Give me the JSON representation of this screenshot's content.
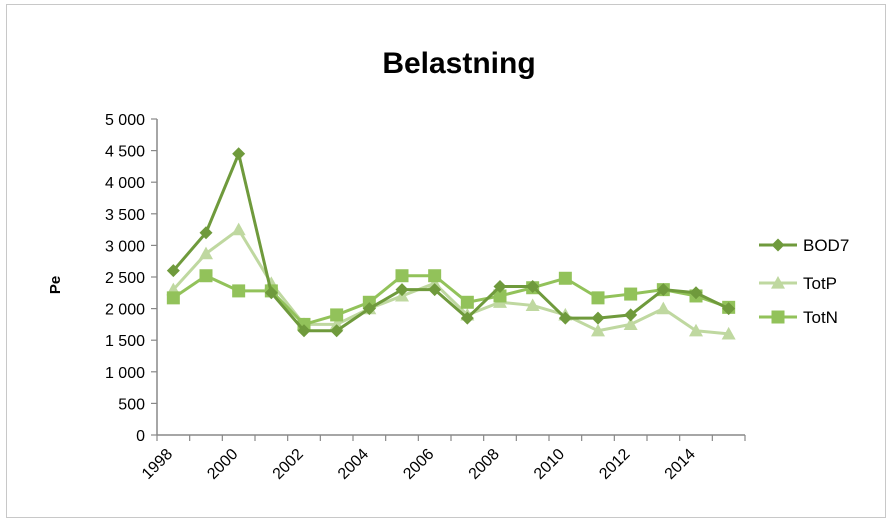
{
  "chart_data": {
    "type": "line",
    "title": "Belastning",
    "xlabel": "",
    "ylabel": "Pe",
    "ylim": [
      0,
      5000
    ],
    "yticks": [
      0,
      500,
      1000,
      1500,
      2000,
      2500,
      3000,
      3500,
      4000,
      4500,
      5000
    ],
    "ytick_labels": [
      "0",
      "500",
      "1 000",
      "1 500",
      "2 000",
      "2 500",
      "3 000",
      "3 500",
      "4 000",
      "4 500",
      "5 000"
    ],
    "categories": [
      "1998",
      "1999",
      "2000",
      "2001",
      "2002",
      "2003",
      "2004",
      "2005",
      "2006",
      "2007",
      "2008",
      "2009",
      "2010",
      "2011",
      "2012",
      "2013",
      "2014",
      "2015"
    ],
    "xtick_labels": [
      "1998",
      "",
      "2000",
      "",
      "2002",
      "",
      "2004",
      "",
      "2006",
      "",
      "2008",
      "",
      "2010",
      "",
      "2012",
      "",
      "2014",
      ""
    ],
    "legend_position": "right",
    "grid": false,
    "series": [
      {
        "name": "BOD7",
        "marker": "diamond",
        "color": "#6f9a3c",
        "values": [
          2600,
          3200,
          4450,
          2250,
          1650,
          1650,
          2000,
          2300,
          2300,
          1850,
          2350,
          2350,
          1850,
          1850,
          1900,
          2300,
          2250,
          2000
        ]
      },
      {
        "name": "TotP",
        "marker": "triangle",
        "color": "#bfd8a0",
        "values": [
          2300,
          2870,
          3250,
          2400,
          1750,
          1750,
          2000,
          2200,
          2400,
          1900,
          2100,
          2050,
          1900,
          1650,
          1750,
          2000,
          1650,
          1600
        ]
      },
      {
        "name": "TotN",
        "marker": "square",
        "color": "#92c25a",
        "values": [
          2170,
          2520,
          2280,
          2280,
          1750,
          1900,
          2100,
          2520,
          2520,
          2100,
          2200,
          2330,
          2480,
          2170,
          2230,
          2300,
          2200,
          2020
        ]
      }
    ]
  }
}
